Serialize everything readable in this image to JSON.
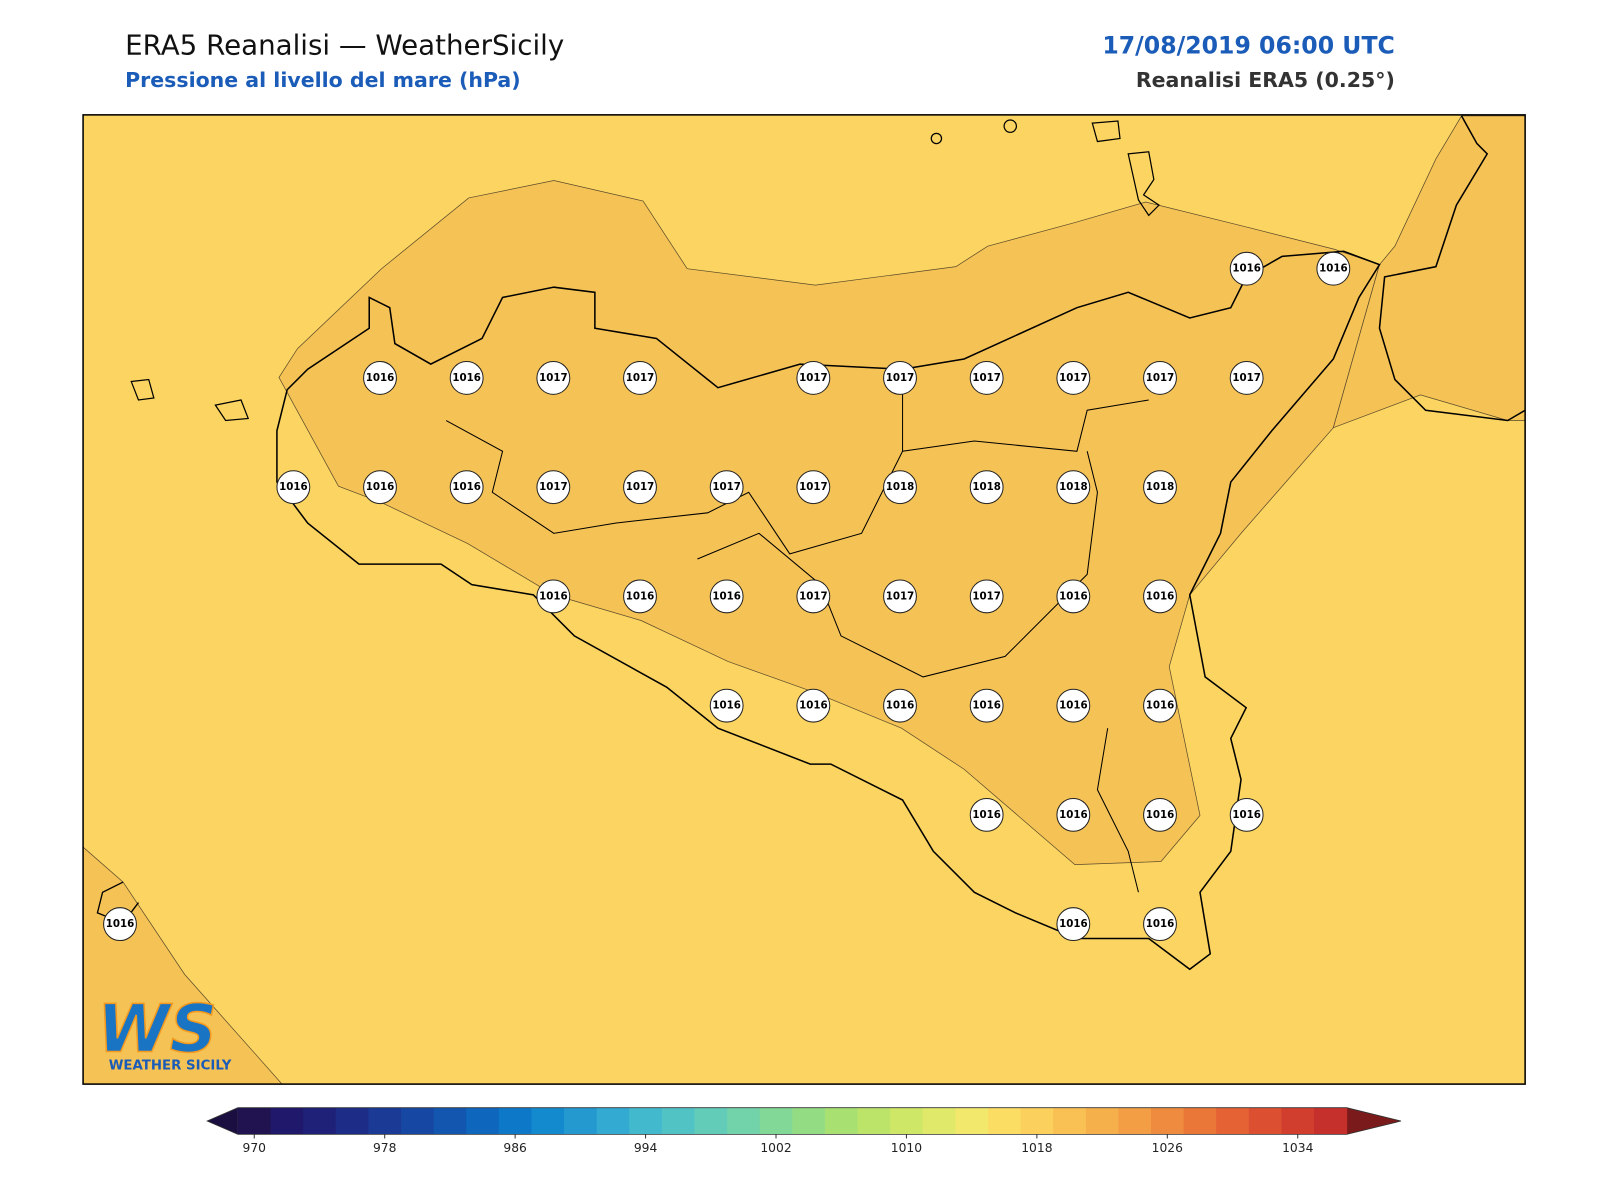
{
  "header": {
    "title": "ERA5 Reanalisi — WeatherSicily",
    "subtitle": "Pressione al livello del mare (hPa)",
    "date": "17/08/2019 06:00 UTC",
    "source": "Reanalisi ERA5 (0.25°)"
  },
  "map": {
    "background_color": "#fbd461",
    "band_color": "#f5c256",
    "pressure_grid": [
      [
        null,
        null,
        null,
        null,
        null,
        null,
        null,
        null,
        null,
        null,
        null,
        null,
        null,
        1016,
        1016
      ],
      [
        null,
        null,
        null,
        1016,
        1016,
        1017,
        1017,
        null,
        1017,
        1017,
        1017,
        1017,
        1017,
        1017,
        null
      ],
      [
        null,
        null,
        1016,
        1016,
        1016,
        1017,
        1017,
        1017,
        1017,
        1018,
        1018,
        1018,
        1018,
        null,
        null
      ],
      [
        null,
        null,
        null,
        null,
        null,
        1016,
        1016,
        1016,
        1017,
        1017,
        1017,
        1016,
        1016,
        null,
        null
      ],
      [
        null,
        null,
        null,
        null,
        null,
        null,
        null,
        1016,
        1016,
        1016,
        1016,
        1016,
        1016,
        null,
        null
      ],
      [
        null,
        null,
        null,
        null,
        null,
        null,
        null,
        null,
        null,
        null,
        1016,
        1016,
        1016,
        1016,
        null
      ],
      [
        1016,
        null,
        null,
        null,
        null,
        null,
        null,
        null,
        null,
        null,
        null,
        1016,
        1016,
        null,
        null
      ]
    ]
  },
  "logo": {
    "mark": "WS",
    "text": "WEATHER SICILY"
  },
  "colorbar": {
    "range": [
      969,
      1037
    ],
    "ticks": [
      970,
      978,
      986,
      994,
      1002,
      1010,
      1018,
      1026,
      1034
    ],
    "under_color": "#1a0f40",
    "over_color": "#7a1a1a",
    "colors": [
      "#21134f",
      "#20186a",
      "#1f2178",
      "#1d2d87",
      "#1a3a96",
      "#1547a3",
      "#1256b0",
      "#0f66bd",
      "#0d77c8",
      "#148ace",
      "#2399d0",
      "#33aad2",
      "#42b9cc",
      "#52c3c4",
      "#62ccb9",
      "#72d3aa",
      "#82d897",
      "#94dc84",
      "#a8e072",
      "#bbe468",
      "#cfe766",
      "#e1e96a",
      "#f2e86c",
      "#fbdd64",
      "#fcd05c",
      "#f9c154",
      "#f6b04b",
      "#f39e44",
      "#ef8b3e",
      "#ea7637",
      "#e46233",
      "#dc4f30",
      "#d23e2e",
      "#c52f2c"
    ]
  }
}
